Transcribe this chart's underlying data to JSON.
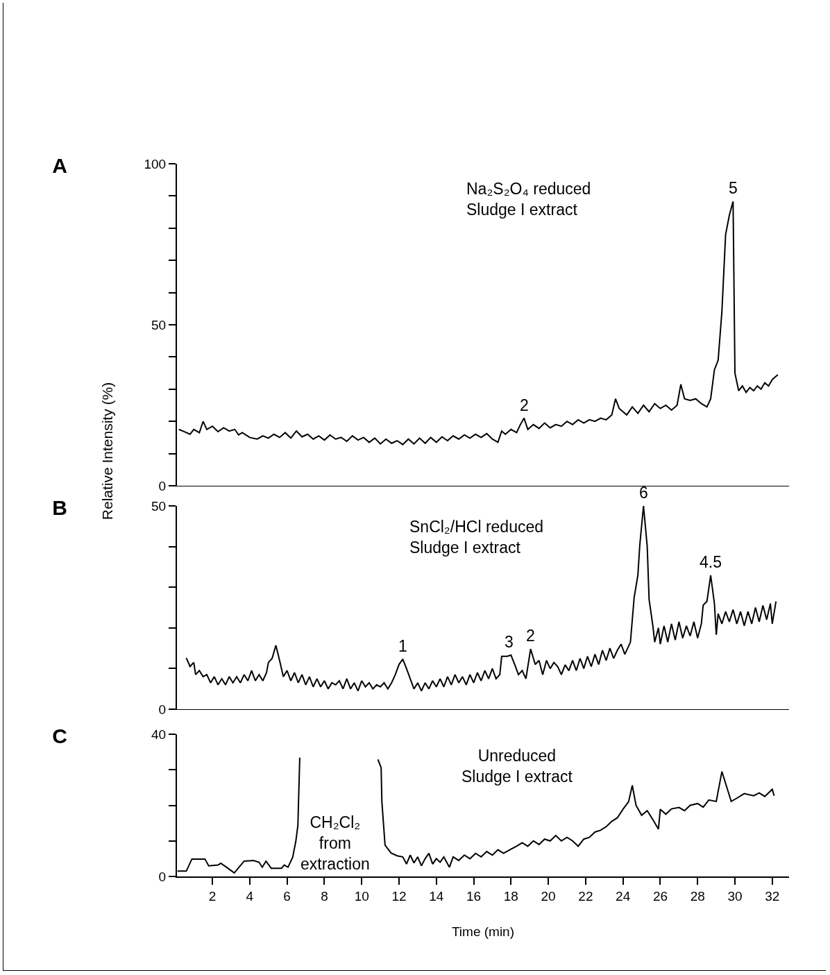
{
  "chart_data": [
    {
      "type": "line",
      "title": "A",
      "xlim": [
        0.1,
        32.9
      ],
      "ylim": [
        0,
        100
      ],
      "yticks": [
        0,
        {
          "value": 10,
          "label": null
        },
        {
          "value": 20,
          "label": null
        },
        {
          "value": 30,
          "label": null
        },
        {
          "value": 40,
          "label": null
        },
        50,
        {
          "value": 60,
          "label": null
        },
        {
          "value": 70,
          "label": null
        },
        {
          "value": 80,
          "label": null
        },
        {
          "value": 90,
          "label": null
        },
        100
      ],
      "tick_labels": "y",
      "annotations": [
        "Na₂S₂O₄ reduced\nSludge I extract",
        {
          "text": "5",
          "x": 29.9,
          "y": 88.3
        },
        {
          "text": "2",
          "x": 18.7,
          "y": 21
        }
      ],
      "series": [
        {
          "color": "#000000",
          "x": [
            0.2,
            0.5,
            0.8,
            1.0,
            1.3,
            1.5,
            1.7,
            2.0,
            2.3,
            2.6,
            2.9,
            3.2,
            3.4,
            3.6,
            4.0,
            4.4,
            4.7,
            5.0,
            5.3,
            5.6,
            5.9,
            6.2,
            6.5,
            6.8,
            7.1,
            7.4,
            7.7,
            8.0,
            8.3,
            8.6,
            8.9,
            9.2,
            9.5,
            9.8,
            10.1,
            10.4,
            10.7,
            11.0,
            11.3,
            11.6,
            11.9,
            12.2,
            12.5,
            12.8,
            13.1,
            13.4,
            13.7,
            14.0,
            14.3,
            14.6,
            14.9,
            15.2,
            15.5,
            15.8,
            16.1,
            16.4,
            16.7,
            17.0,
            17.3,
            17.5,
            17.7,
            18.0,
            18.3,
            18.5,
            18.7,
            18.9,
            19.2,
            19.5,
            19.8,
            20.1,
            20.4,
            20.7,
            21.0,
            21.3,
            21.6,
            21.9,
            22.2,
            22.5,
            22.8,
            23.1,
            23.4,
            23.6,
            23.8,
            24.0,
            24.2,
            24.5,
            24.8,
            25.1,
            25.4,
            25.7,
            26.0,
            26.3,
            26.6,
            26.9,
            27.1,
            27.3,
            27.6,
            27.9,
            28.2,
            28.5,
            28.7,
            28.9,
            29.1,
            29.3,
            29.5,
            29.7,
            29.9,
            30.0,
            30.2,
            30.4,
            30.6,
            30.8,
            31.0,
            31.2,
            31.4,
            31.6,
            31.8,
            32.0,
            32.3
          ],
          "values": [
            17.5,
            16.8,
            16.0,
            17.5,
            16.5,
            20.0,
            17.5,
            18.5,
            16.8,
            18.0,
            17.0,
            17.5,
            15.8,
            16.5,
            15.0,
            14.5,
            15.5,
            14.8,
            16.0,
            15.0,
            16.5,
            14.8,
            17.0,
            15.2,
            16.0,
            14.5,
            15.5,
            14.2,
            15.8,
            14.5,
            15.0,
            13.8,
            15.5,
            14.2,
            15.0,
            13.5,
            14.8,
            13.0,
            14.5,
            13.2,
            14.0,
            12.8,
            14.5,
            13.0,
            14.8,
            13.2,
            15.0,
            13.5,
            15.2,
            14.0,
            15.5,
            14.5,
            15.8,
            14.8,
            16.0,
            15.0,
            16.2,
            14.5,
            13.5,
            17.0,
            16.0,
            17.5,
            16.5,
            19.0,
            21.0,
            17.5,
            19.0,
            17.8,
            19.5,
            18.0,
            19.0,
            18.5,
            20.0,
            19.0,
            20.5,
            19.5,
            20.5,
            20.0,
            21.0,
            20.5,
            22.0,
            27.0,
            24.0,
            23.0,
            22.0,
            24.5,
            22.5,
            25.0,
            23.0,
            25.5,
            24.0,
            25.0,
            23.5,
            25.0,
            31.5,
            27.0,
            26.5,
            27.0,
            25.5,
            24.5,
            27.0,
            36.0,
            39.0,
            54.0,
            78.0,
            84.0,
            88.3,
            35.0,
            29.5,
            31.0,
            29.0,
            30.5,
            29.5,
            31.0,
            30.0,
            32.0,
            31.0,
            33.0,
            34.5
          ]
        }
      ]
    },
    {
      "type": "line",
      "title": "B",
      "ylabel": "Relative Intensity (%)",
      "xlim": [
        0.1,
        32.9
      ],
      "ylim": [
        0,
        50
      ],
      "yticks": [
        0,
        {
          "value": 10,
          "label": null
        },
        {
          "value": 20,
          "label": null
        },
        {
          "value": 30,
          "label": null
        },
        {
          "value": 40,
          "label": null
        },
        50
      ],
      "tick_labels": "y",
      "annotations": [
        "SnCl₂/HCl reduced\nSludge I extract",
        {
          "text": "6",
          "x": 25.1,
          "y": 50
        },
        {
          "text": "4.5",
          "x": 28.7,
          "y": 32.9
        },
        {
          "text": "1",
          "x": 12.2,
          "y": 12.3
        },
        {
          "text": "3",
          "x": 17.9,
          "y": 13.3
        },
        {
          "text": "2",
          "x": 19.05,
          "y": 14.8
        }
      ],
      "series": [
        {
          "color": "#000000",
          "x": [
            0.6,
            0.8,
            1.0,
            1.1,
            1.3,
            1.5,
            1.7,
            1.9,
            2.1,
            2.3,
            2.5,
            2.7,
            2.9,
            3.1,
            3.3,
            3.5,
            3.7,
            3.9,
            4.1,
            4.3,
            4.5,
            4.7,
            4.9,
            5.0,
            5.2,
            5.4,
            5.6,
            5.8,
            6.0,
            6.2,
            6.4,
            6.6,
            6.8,
            7.0,
            7.2,
            7.4,
            7.6,
            7.8,
            8.0,
            8.2,
            8.4,
            8.6,
            8.8,
            9.0,
            9.2,
            9.4,
            9.6,
            9.8,
            10.0,
            10.2,
            10.4,
            10.6,
            10.8,
            11.0,
            11.2,
            11.4,
            11.6,
            11.8,
            12.0,
            12.2,
            12.4,
            12.6,
            12.8,
            13.0,
            13.2,
            13.4,
            13.6,
            13.8,
            14.0,
            14.2,
            14.4,
            14.6,
            14.8,
            15.0,
            15.2,
            15.4,
            15.6,
            15.8,
            16.0,
            16.2,
            16.4,
            16.6,
            16.8,
            17.0,
            17.2,
            17.4,
            17.5,
            17.8,
            18.0,
            18.2,
            18.4,
            18.6,
            18.8,
            19.05,
            19.3,
            19.5,
            19.7,
            19.9,
            20.1,
            20.3,
            20.5,
            20.7,
            20.9,
            21.1,
            21.3,
            21.5,
            21.7,
            21.9,
            22.1,
            22.3,
            22.5,
            22.7,
            22.9,
            23.1,
            23.3,
            23.5,
            23.7,
            23.9,
            24.1,
            24.4,
            24.6,
            24.8,
            24.9,
            25.1,
            25.3,
            25.4,
            25.6,
            25.7,
            25.9,
            26.0,
            26.2,
            26.4,
            26.6,
            26.8,
            27.0,
            27.2,
            27.4,
            27.6,
            27.8,
            28.0,
            28.2,
            28.3,
            28.5,
            28.7,
            28.9,
            29.0,
            29.1,
            29.3,
            29.5,
            29.7,
            29.9,
            30.1,
            30.3,
            30.5,
            30.7,
            30.9,
            31.1,
            31.3,
            31.5,
            31.7,
            31.9,
            32.0,
            32.2
          ],
          "values": [
            12.6,
            10.5,
            11.5,
            8.5,
            9.5,
            8.0,
            8.5,
            6.5,
            8.0,
            6.0,
            7.5,
            6.0,
            8.0,
            6.5,
            8.0,
            6.5,
            8.5,
            7.0,
            9.5,
            7.0,
            8.5,
            7.0,
            9.0,
            11.5,
            12.5,
            15.7,
            12.0,
            8.0,
            9.5,
            7.0,
            9.0,
            6.5,
            8.5,
            6.0,
            8.0,
            5.5,
            7.5,
            5.5,
            7.0,
            5.0,
            6.5,
            6.0,
            7.0,
            5.0,
            7.5,
            5.0,
            6.5,
            4.5,
            7.0,
            5.5,
            6.5,
            5.0,
            6.0,
            5.5,
            6.5,
            5.0,
            6.5,
            8.5,
            11.0,
            12.3,
            10.0,
            7.5,
            5.0,
            6.5,
            4.5,
            6.5,
            5.0,
            7.0,
            5.5,
            7.5,
            5.5,
            8.0,
            6.0,
            8.5,
            6.5,
            8.0,
            6.0,
            8.5,
            6.5,
            9.0,
            7.0,
            9.5,
            7.5,
            10.0,
            7.5,
            8.5,
            13.0,
            13.0,
            13.3,
            11.0,
            8.5,
            9.5,
            7.5,
            14.8,
            11.0,
            12.0,
            8.5,
            12.0,
            10.0,
            11.5,
            10.5,
            8.5,
            10.9,
            9.5,
            12.0,
            9.5,
            12.5,
            10.0,
            13.0,
            10.5,
            13.5,
            11.0,
            14.5,
            12.0,
            15.0,
            12.5,
            14.5,
            16.0,
            13.5,
            16.5,
            27.5,
            33.0,
            40.3,
            50.0,
            40.0,
            27.0,
            20.6,
            16.5,
            20.0,
            16.0,
            20.5,
            16.5,
            21.0,
            17.0,
            21.5,
            17.5,
            20.5,
            18.0,
            21.5,
            17.5,
            21.0,
            25.6,
            26.5,
            32.9,
            26.0,
            18.3,
            23.5,
            21.0,
            24.0,
            21.5,
            24.5,
            21.0,
            24.0,
            20.5,
            24.0,
            21.0,
            25.0,
            21.5,
            25.5,
            22.0,
            26.0,
            21.0,
            26.5
          ]
        }
      ]
    },
    {
      "type": "line",
      "title": "C",
      "xlabel": "Time (min)",
      "xlim": [
        0.1,
        32.9
      ],
      "xticks": [
        2,
        4,
        6,
        8,
        10,
        12,
        14,
        16,
        18,
        20,
        22,
        24,
        26,
        28,
        30,
        32
      ],
      "ylim": [
        0,
        40
      ],
      "yticks": [
        0,
        {
          "value": 10,
          "label": null
        },
        {
          "value": 20,
          "label": null
        },
        {
          "value": 30,
          "label": null
        },
        40
      ],
      "annotations": [
        "Unreduced\nSludge I extract",
        "CH₂Cl₂\nfrom\nextraction"
      ],
      "series": [
        {
          "color": "#000000",
          "x": [
            0.13,
            0.6,
            0.9,
            1.6,
            1.8,
            2.3,
            2.45,
            2.75,
            3.17,
            3.7,
            4.2,
            4.5,
            4.67,
            4.87,
            5.15,
            5.7,
            5.85,
            6.05,
            6.3,
            6.47,
            6.58,
            6.68,
            8.8,
            10.87,
            11.04,
            11.08,
            11.25,
            11.57,
            11.9,
            12.2,
            12.4,
            12.6,
            12.8,
            13.0,
            13.2,
            13.4,
            13.6,
            13.8,
            14.0,
            14.2,
            14.4,
            14.7,
            14.9,
            15.2,
            15.5,
            15.8,
            16.1,
            16.4,
            16.7,
            17.0,
            17.3,
            17.6,
            18.0,
            18.3,
            18.6,
            18.9,
            19.2,
            19.5,
            19.8,
            20.1,
            20.4,
            20.7,
            21.0,
            21.3,
            21.6,
            21.9,
            22.2,
            22.5,
            22.8,
            23.1,
            23.4,
            23.7,
            24.0,
            24.3,
            24.5,
            24.7,
            25.0,
            25.3,
            25.6,
            25.9,
            26.0,
            26.3,
            26.6,
            27.0,
            27.3,
            27.6,
            28.0,
            28.3,
            28.6,
            29.0,
            29.3,
            29.6,
            29.8,
            30.1,
            30.5,
            31.0,
            31.3,
            31.6,
            32.0,
            32.1
          ],
          "values": [
            1.5,
            1.5,
            4.9,
            4.9,
            3.0,
            3.2,
            3.7,
            2.6,
            1.0,
            4.3,
            4.5,
            4.0,
            2.6,
            4.3,
            2.3,
            2.3,
            3.2,
            2.6,
            5.4,
            9.9,
            14.4,
            33.4,
            null,
            32.9,
            30.6,
            21.1,
            8.8,
            6.6,
            5.8,
            5.5,
            3.5,
            6.0,
            3.8,
            5.5,
            3.0,
            5.0,
            6.5,
            3.5,
            5.0,
            4.0,
            5.5,
            2.6,
            5.5,
            4.5,
            6.0,
            5.0,
            6.5,
            5.5,
            7.0,
            6.0,
            7.5,
            6.5,
            7.7,
            8.5,
            9.5,
            8.5,
            10.0,
            9.0,
            10.5,
            10.0,
            11.5,
            10.0,
            11.0,
            10.0,
            8.5,
            10.5,
            11.0,
            12.5,
            13.0,
            14.0,
            15.5,
            16.5,
            18.9,
            21.0,
            25.6,
            20.0,
            17.2,
            18.5,
            16.0,
            13.3,
            18.9,
            17.5,
            19.0,
            19.4,
            18.5,
            20.0,
            20.5,
            19.5,
            21.5,
            21.1,
            29.5,
            24.5,
            21.1,
            22.0,
            23.3,
            22.7,
            23.5,
            22.5,
            24.5,
            22.7
          ]
        }
      ]
    }
  ]
}
